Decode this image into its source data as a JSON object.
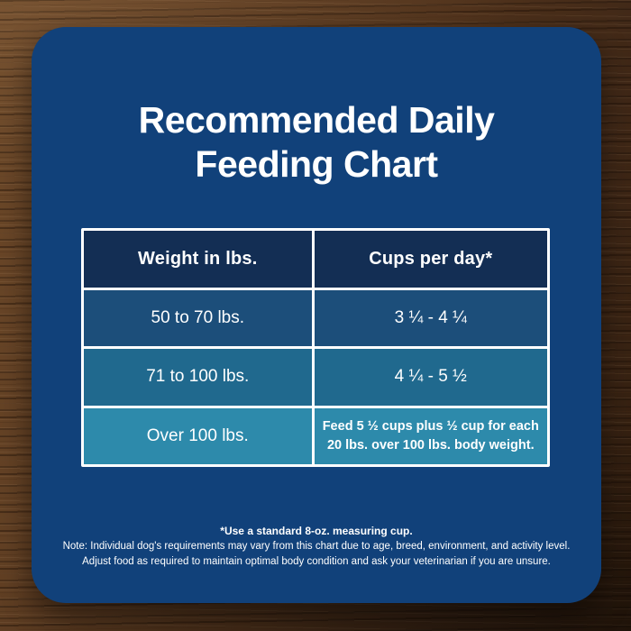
{
  "card": {
    "title_line1": "Recommended Daily",
    "title_line2": "Feeding Chart"
  },
  "table": {
    "header": {
      "col1": "Weight in lbs.",
      "col2": "Cups per day*"
    },
    "rows": [
      {
        "weight": "50 to 70 lbs.",
        "cups": "3 ¼ - 4 ¼"
      },
      {
        "weight": "71 to 100 lbs.",
        "cups": "4 ¼ - 5 ½"
      },
      {
        "weight": "Over 100 lbs.",
        "cups": "Feed 5 ½ cups plus ½ cup for each 20 lbs. over 100 lbs. body weight."
      }
    ]
  },
  "notes": {
    "measuring_cup": "*Use a standard 8-oz. measuring cup.",
    "note_line1": "Note: Individual dog's requirements may vary from this chart due to age, breed, environment, and activity level.",
    "note_line2": "Adjust food as required to maintain optimal body condition and ask your veterinarian if you are unsure."
  },
  "colors": {
    "card_bg": "#11417a",
    "header_bg": "#132e54",
    "row1_bg": "#1c4e7a",
    "row2_bg": "#20698e",
    "row3_bg": "#2d8aab",
    "border": "#ffffff",
    "text": "#ffffff"
  },
  "chart_data": {
    "type": "table",
    "title": "Recommended Daily Feeding Chart",
    "columns": [
      "Weight in lbs.",
      "Cups per day*"
    ],
    "rows": [
      [
        "50 to 70 lbs.",
        "3 ¼ - 4 ¼"
      ],
      [
        "71 to 100 lbs.",
        "4 ¼ - 5 ½"
      ],
      [
        "Over 100 lbs.",
        "Feed 5 ½ cups plus ½ cup for each 20 lbs. over 100 lbs. body weight."
      ]
    ],
    "footnotes": [
      "*Use a standard 8-oz. measuring cup.",
      "Note: Individual dog's requirements may vary from this chart due to age, breed, environment, and activity level.",
      "Adjust food as required to maintain optimal body condition and ask your veterinarian if you are unsure."
    ]
  }
}
